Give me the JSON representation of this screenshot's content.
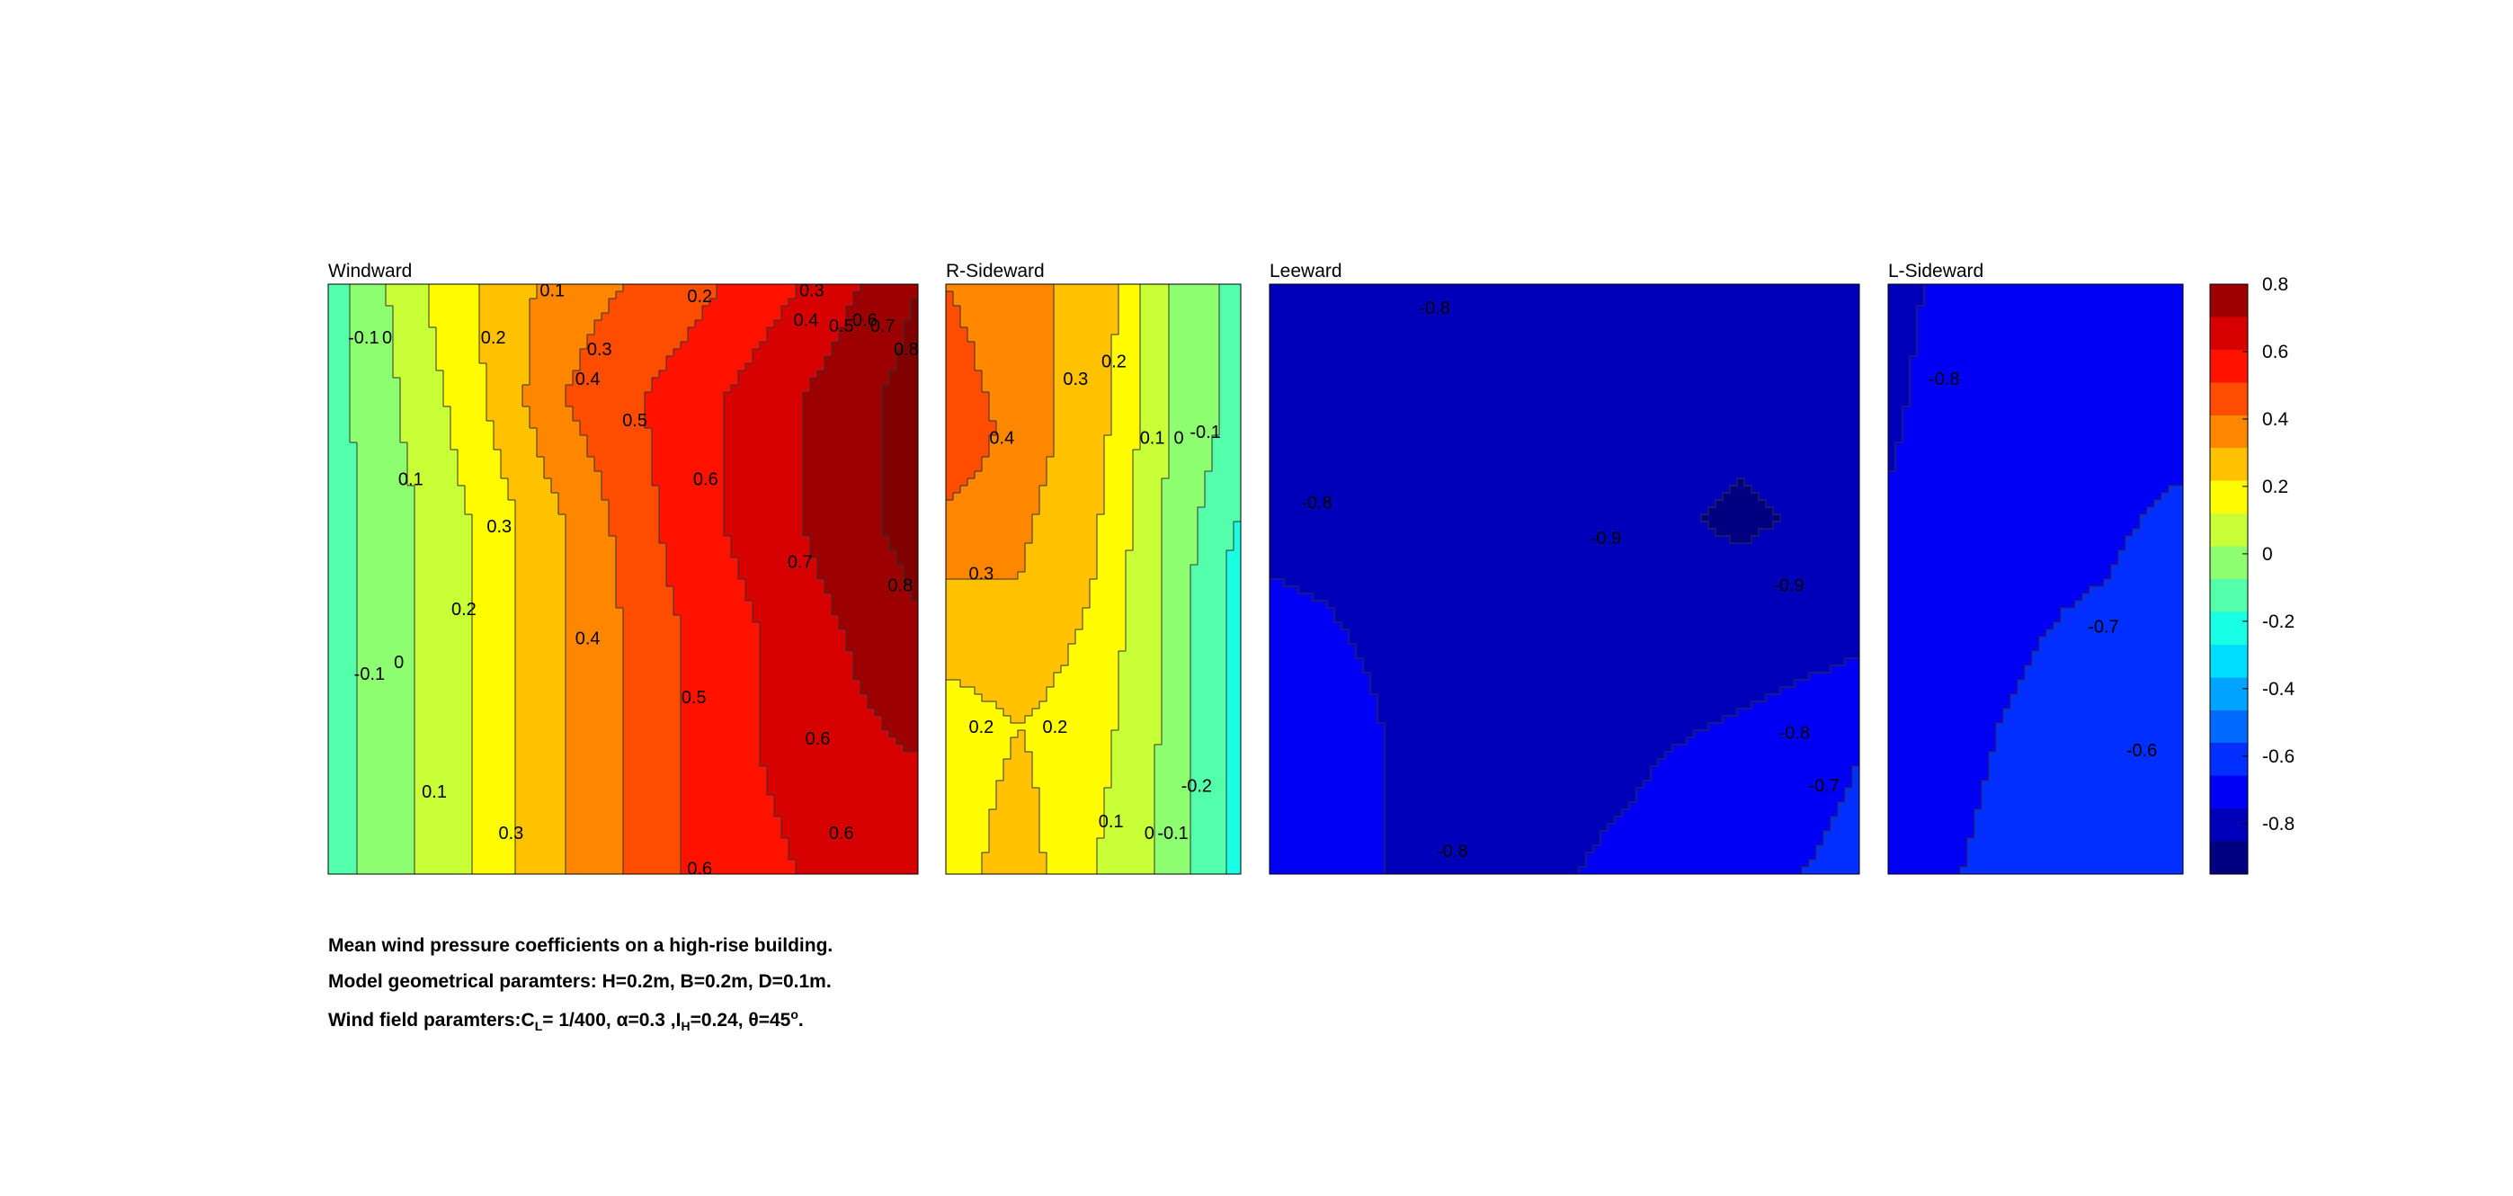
{
  "chart_data": {
    "type": "heatmap",
    "colormap": "jet",
    "clim": [
      -0.95,
      0.8
    ],
    "colorbar": {
      "ticks": [
        0.8,
        0.6,
        0.4,
        0.2,
        0,
        -0.2,
        -0.4,
        -0.6,
        -0.8
      ],
      "tick_labels": [
        "0.8",
        "0.6",
        "0.4",
        "0.2",
        "0",
        "-0.2",
        "-0.4",
        "-0.6",
        "-0.8"
      ]
    },
    "panels": [
      {
        "title": "Windward",
        "x": [
          0,
          0.2,
          0.4,
          0.6,
          0.8,
          1.0
        ],
        "y": [
          1.0,
          0.8,
          0.6,
          0.4,
          0.2,
          0
        ],
        "z": [
          [
            -0.15,
            0.15,
            0.35,
            0.45,
            0.6,
            0.8
          ],
          [
            -0.15,
            0.1,
            0.4,
            0.55,
            0.7,
            0.85
          ],
          [
            -0.15,
            0.05,
            0.3,
            0.55,
            0.7,
            0.85
          ],
          [
            -0.15,
            0.05,
            0.3,
            0.5,
            0.65,
            0.78
          ],
          [
            -0.15,
            0.05,
            0.3,
            0.5,
            0.65,
            0.7
          ],
          [
            -0.15,
            0.05,
            0.3,
            0.5,
            0.6,
            0.68
          ]
        ],
        "contour_labels": [
          {
            "text": "-0.1",
            "x": 0.06,
            "y": 0.91
          },
          {
            "text": "0",
            "x": 0.1,
            "y": 0.91
          },
          {
            "text": "0.1",
            "x": 0.38,
            "y": 0.99
          },
          {
            "text": "0.2",
            "x": 0.63,
            "y": 0.98
          },
          {
            "text": "0.3",
            "x": 0.82,
            "y": 0.99
          },
          {
            "text": "0.2",
            "x": 0.28,
            "y": 0.91
          },
          {
            "text": "0.3",
            "x": 0.46,
            "y": 0.89
          },
          {
            "text": "0.4",
            "x": 0.44,
            "y": 0.84
          },
          {
            "text": "0.4",
            "x": 0.81,
            "y": 0.94
          },
          {
            "text": "0.5",
            "x": 0.87,
            "y": 0.93
          },
          {
            "text": "0.6",
            "x": 0.91,
            "y": 0.94
          },
          {
            "text": "0.7",
            "x": 0.94,
            "y": 0.93
          },
          {
            "text": "0.8",
            "x": 0.98,
            "y": 0.89
          },
          {
            "text": "0.5",
            "x": 0.52,
            "y": 0.77
          },
          {
            "text": "0.1",
            "x": 0.14,
            "y": 0.67
          },
          {
            "text": "0.6",
            "x": 0.64,
            "y": 0.67
          },
          {
            "text": "0.3",
            "x": 0.29,
            "y": 0.59
          },
          {
            "text": "0.7",
            "x": 0.8,
            "y": 0.53
          },
          {
            "text": "0.8",
            "x": 0.97,
            "y": 0.49
          },
          {
            "text": "0.2",
            "x": 0.23,
            "y": 0.45
          },
          {
            "text": "0.4",
            "x": 0.44,
            "y": 0.4
          },
          {
            "text": "-0.1",
            "x": 0.07,
            "y": 0.34
          },
          {
            "text": "0",
            "x": 0.12,
            "y": 0.36
          },
          {
            "text": "0.5",
            "x": 0.62,
            "y": 0.3
          },
          {
            "text": "0.6",
            "x": 0.83,
            "y": 0.23
          },
          {
            "text": "0.1",
            "x": 0.18,
            "y": 0.14
          },
          {
            "text": "0.3",
            "x": 0.31,
            "y": 0.07
          },
          {
            "text": "0.6",
            "x": 0.87,
            "y": 0.07
          },
          {
            "text": "0.6",
            "x": 0.63,
            "y": 0.01
          }
        ]
      },
      {
        "title": "R-Sideward",
        "x": [
          0,
          0.25,
          0.5,
          0.75,
          1.0
        ],
        "y": [
          1.0,
          0.75,
          0.5,
          0.25,
          0
        ],
        "z": [
          [
            0.4,
            0.3,
            0.3,
            0.0,
            -0.15
          ],
          [
            0.5,
            0.35,
            0.25,
            0.0,
            -0.15
          ],
          [
            0.3,
            0.3,
            0.2,
            -0.02,
            -0.25
          ],
          [
            0.15,
            0.2,
            0.15,
            -0.02,
            -0.25
          ],
          [
            0.15,
            0.25,
            0.1,
            -0.02,
            -0.25
          ]
        ],
        "contour_labels": [
          {
            "text": "0.3",
            "x": 0.44,
            "y": 0.84
          },
          {
            "text": "0.2",
            "x": 0.57,
            "y": 0.87
          },
          {
            "text": "0.4",
            "x": 0.19,
            "y": 0.74
          },
          {
            "text": "0.1",
            "x": 0.7,
            "y": 0.74
          },
          {
            "text": "0",
            "x": 0.79,
            "y": 0.74
          },
          {
            "text": "-0.1",
            "x": 0.88,
            "y": 0.75
          },
          {
            "text": "0.3",
            "x": 0.12,
            "y": 0.51
          },
          {
            "text": "0.2",
            "x": 0.12,
            "y": 0.25
          },
          {
            "text": "0.2",
            "x": 0.37,
            "y": 0.25
          },
          {
            "text": "-0.2",
            "x": 0.85,
            "y": 0.15
          },
          {
            "text": "0.1",
            "x": 0.56,
            "y": 0.09
          },
          {
            "text": "0",
            "x": 0.69,
            "y": 0.07
          },
          {
            "text": "-0.1",
            "x": 0.77,
            "y": 0.07
          }
        ]
      },
      {
        "title": "Leeward",
        "x": [
          0,
          0.2,
          0.4,
          0.6,
          0.8,
          1.0
        ],
        "y": [
          1.0,
          0.8,
          0.6,
          0.4,
          0.2,
          0
        ],
        "z": [
          [
            -0.82,
            -0.85,
            -0.86,
            -0.86,
            -0.86,
            -0.86
          ],
          [
            -0.82,
            -0.83,
            -0.84,
            -0.86,
            -0.88,
            -0.88
          ],
          [
            -0.82,
            -0.81,
            -0.83,
            -0.88,
            -0.91,
            -0.88
          ],
          [
            -0.78,
            -0.81,
            -0.84,
            -0.9,
            -0.86,
            -0.82
          ],
          [
            -0.74,
            -0.8,
            -0.84,
            -0.82,
            -0.76,
            -0.7
          ],
          [
            -0.72,
            -0.8,
            -0.83,
            -0.78,
            -0.72,
            -0.68
          ]
        ],
        "contour_labels": [
          {
            "text": "-0.8",
            "x": 0.28,
            "y": 0.96
          },
          {
            "text": "-0.8",
            "x": 0.08,
            "y": 0.63
          },
          {
            "text": "-0.9",
            "x": 0.57,
            "y": 0.57
          },
          {
            "text": "-0.9",
            "x": 0.88,
            "y": 0.49
          },
          {
            "text": "-0.8",
            "x": 0.89,
            "y": 0.24
          },
          {
            "text": "-0.7",
            "x": 0.94,
            "y": 0.15
          },
          {
            "text": "-0.8",
            "x": 0.31,
            "y": 0.04
          }
        ]
      },
      {
        "title": "L-Sideward",
        "x": [
          0,
          0.25,
          0.5,
          0.75,
          1.0
        ],
        "y": [
          1.0,
          0.75,
          0.5,
          0.25,
          0
        ],
        "z": [
          [
            -0.82,
            -0.78,
            -0.75,
            -0.74,
            -0.74
          ],
          [
            -0.81,
            -0.76,
            -0.74,
            -0.73,
            -0.72
          ],
          [
            -0.78,
            -0.74,
            -0.72,
            -0.7,
            -0.66
          ],
          [
            -0.75,
            -0.72,
            -0.68,
            -0.62,
            -0.64
          ],
          [
            -0.72,
            -0.7,
            -0.66,
            -0.64,
            -0.66
          ]
        ],
        "contour_labels": [
          {
            "text": "-0.8",
            "x": 0.19,
            "y": 0.84
          },
          {
            "text": "-0.7",
            "x": 0.73,
            "y": 0.42
          },
          {
            "text": "-0.6",
            "x": 0.86,
            "y": 0.21
          }
        ]
      }
    ]
  },
  "caption": {
    "line1": "Mean wind pressure coefficients on a high-rise building.",
    "line2": "Model geometrical paramters: H=0.2m, B=0.2m, D=0.1m.",
    "line3_prefix": "Wind field paramters:C",
    "line3_cl_sub": "L",
    "line3_mid1": "= 1/400, α=0.3 ,I",
    "line3_ih_sub": "H",
    "line3_mid2": "=0.24, θ=45",
    "line3_deg_sup": "o",
    "line3_end": "."
  }
}
